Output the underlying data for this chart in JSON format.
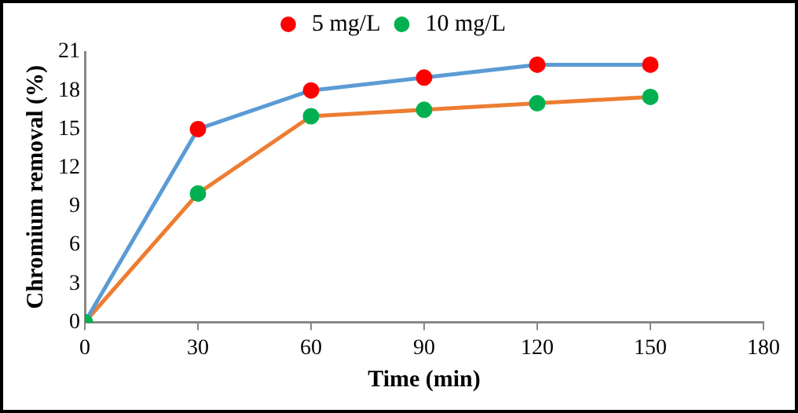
{
  "chart_data": {
    "type": "line",
    "xlabel": "Time (min)",
    "ylabel": "Chromium removal (%)",
    "x": [
      0,
      30,
      60,
      90,
      120,
      150
    ],
    "series": [
      {
        "name": "5 mg/L",
        "color": "#5b9bd5",
        "colors": [
          "#00b050",
          "#ff0000",
          "#ff0000",
          "#ff0000",
          "#ff0000",
          "#ff0000"
        ],
        "values": [
          0,
          15,
          18,
          19,
          20,
          20
        ]
      },
      {
        "name": "10 mg/L",
        "color": "#ed7d31",
        "colors": [
          "#00b050",
          "#00b050",
          "#00b050",
          "#00b050",
          "#00b050",
          "#00b050"
        ],
        "values": [
          0,
          10,
          16,
          16.5,
          17,
          17.5
        ]
      }
    ],
    "xlim": [
      0,
      180
    ],
    "xticks": [
      0,
      30,
      60,
      90,
      120,
      150,
      180
    ],
    "ylim": [
      0,
      21
    ],
    "yticks": [
      0,
      3,
      6,
      9,
      12,
      15,
      18,
      21
    ],
    "grid": false,
    "legend": "top",
    "marker": "circle",
    "line_style": "solid"
  }
}
